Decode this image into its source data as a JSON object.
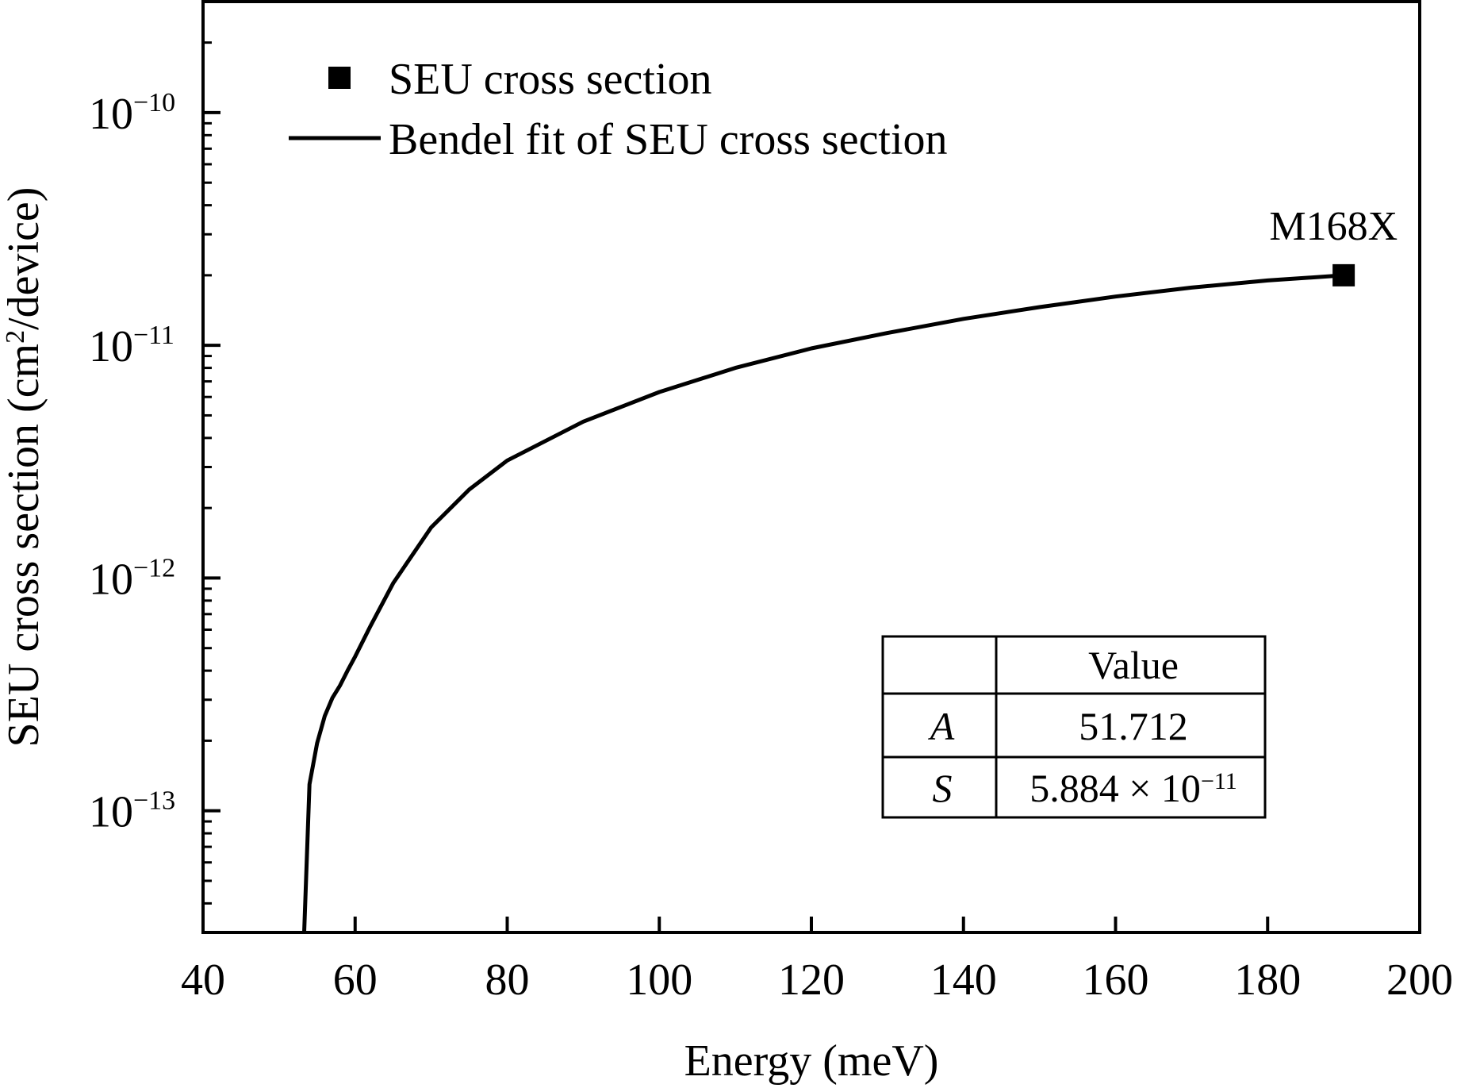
{
  "chart_data": {
    "type": "line",
    "title": "",
    "xlabel": "Energy (meV)",
    "ylabel": "SEU cross section (cm²/device)",
    "ylabel_parts": {
      "before": "SEU cross section (cm",
      "sup": "2",
      "after": "/device)"
    },
    "xlim": [
      40,
      200
    ],
    "ylim": [
      3e-14,
      3e-10
    ],
    "yscale": "log",
    "x_ticks": [
      40,
      60,
      80,
      100,
      120,
      140,
      160,
      180,
      200
    ],
    "x_tick_labels": [
      "40",
      "60",
      "80",
      "100",
      "120",
      "140",
      "160",
      "180",
      "200"
    ],
    "y_ticks": [
      {
        "value": 1e-10,
        "base": "10",
        "exp": "−10"
      },
      {
        "value": 1e-11,
        "base": "10",
        "exp": "−11"
      },
      {
        "value": 1e-12,
        "base": "10",
        "exp": "−12"
      },
      {
        "value": 1e-13,
        "base": "10",
        "exp": "−13"
      }
    ],
    "grid": false,
    "legend_position": "top-left",
    "series": [
      {
        "name": "SEU cross section",
        "kind": "scatter",
        "marker": "square",
        "color": "#000000",
        "x": [
          190
        ],
        "y": [
          2e-11
        ],
        "point_labels": [
          "M168X"
        ]
      },
      {
        "name": "Bendel fit of SEU cross section",
        "kind": "line",
        "color": "#000000",
        "x": [
          53.3,
          54,
          55,
          56,
          57,
          58,
          59,
          60,
          62,
          65,
          70,
          75,
          80,
          90,
          100,
          110,
          120,
          130,
          140,
          150,
          160,
          170,
          180,
          190
        ],
        "y": [
          3e-14,
          1.3e-13,
          1.95e-13,
          2.55e-13,
          3.05e-13,
          3.45e-13,
          4e-13,
          4.6e-13,
          6.2e-13,
          9.5e-13,
          1.65e-12,
          2.4e-12,
          3.2e-12,
          4.7e-12,
          6.3e-12,
          8e-12,
          9.7e-12,
          1.13e-11,
          1.3e-11,
          1.46e-11,
          1.62e-11,
          1.77e-11,
          1.9e-11,
          2e-11
        ]
      }
    ],
    "inset_table": {
      "header": [
        "",
        "Value"
      ],
      "rows": [
        {
          "param": "A",
          "value": "51.712"
        },
        {
          "param": "S",
          "value_base": "5.884 × 10",
          "value_exp": "−11"
        }
      ]
    }
  }
}
